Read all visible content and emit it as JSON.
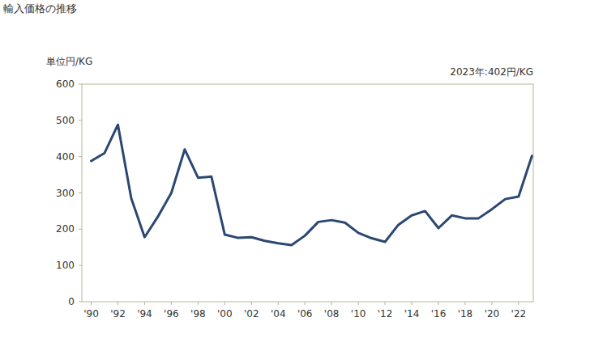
{
  "chart_data": {
    "type": "line",
    "title": "輸入価格の推移",
    "y_label": "単位円/KG",
    "annotation": "2023年:402円/KG",
    "x": [
      1990,
      1991,
      1992,
      1993,
      1994,
      1995,
      1996,
      1997,
      1998,
      1999,
      2000,
      2001,
      2002,
      2003,
      2004,
      2005,
      2006,
      2007,
      2008,
      2009,
      2010,
      2011,
      2012,
      2013,
      2014,
      2015,
      2016,
      2017,
      2018,
      2019,
      2020,
      2021,
      2022,
      2023
    ],
    "values": [
      388,
      410,
      488,
      285,
      178,
      235,
      300,
      420,
      342,
      345,
      185,
      176,
      178,
      168,
      161,
      156,
      182,
      220,
      225,
      218,
      190,
      175,
      165,
      212,
      238,
      250,
      203,
      238,
      230,
      230,
      255,
      283,
      290,
      402
    ],
    "color": "#2b4872",
    "xlim": [
      1989.3,
      2023.1
    ],
    "xticks": [
      {
        "value": 1990,
        "label": "'90"
      },
      {
        "value": 1992,
        "label": "'92"
      },
      {
        "value": 1994,
        "label": "'94"
      },
      {
        "value": 1996,
        "label": "'96"
      },
      {
        "value": 1998,
        "label": "'98"
      },
      {
        "value": 2000,
        "label": "'00"
      },
      {
        "value": 2002,
        "label": "'02"
      },
      {
        "value": 2004,
        "label": "'04"
      },
      {
        "value": 2006,
        "label": "'06"
      },
      {
        "value": 2008,
        "label": "'08"
      },
      {
        "value": 2010,
        "label": "'10"
      },
      {
        "value": 2012,
        "label": "'12"
      },
      {
        "value": 2014,
        "label": "'14"
      },
      {
        "value": 2016,
        "label": "'16"
      },
      {
        "value": 2018,
        "label": "'18"
      },
      {
        "value": 2020,
        "label": "'20"
      },
      {
        "value": 2022,
        "label": "'22"
      }
    ],
    "ylim": [
      0,
      600
    ],
    "yticks": [
      0,
      100,
      200,
      300,
      400,
      500,
      600
    ],
    "grid": false
  }
}
